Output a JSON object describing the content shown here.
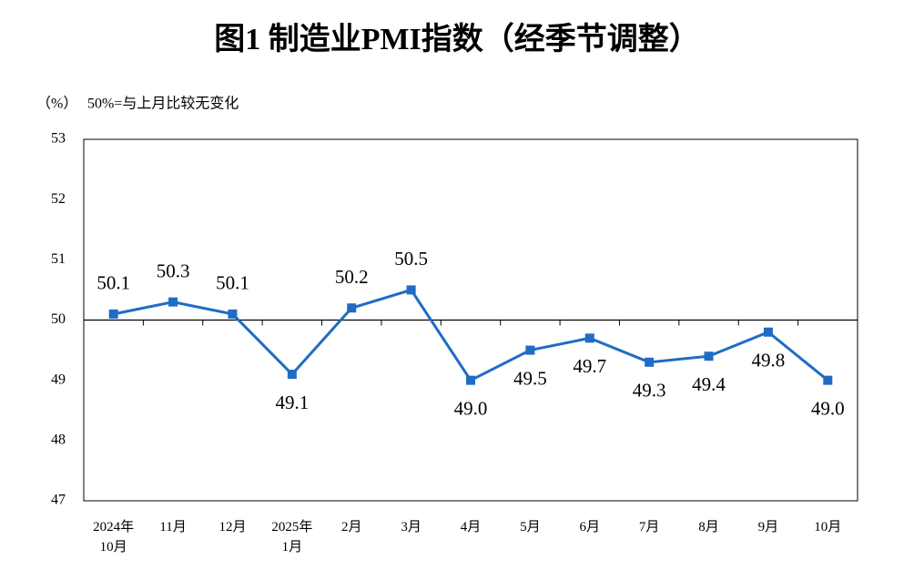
{
  "chart_data": {
    "type": "line",
    "title": "图1  制造业PMI指数（经季节调整）",
    "unit": "（%）",
    "note": "50%=与上月比较无变化",
    "categories": [
      "2024年\n10月",
      "11月",
      "12月",
      "2025年\n1月",
      "2月",
      "3月",
      "4月",
      "5月",
      "6月",
      "7月",
      "8月",
      "9月",
      "10月"
    ],
    "series": [
      {
        "name": "制造业PMI",
        "color": "#1f6cc4",
        "values": [
          50.1,
          50.3,
          50.1,
          49.1,
          50.2,
          50.5,
          49.0,
          49.5,
          49.7,
          49.3,
          49.4,
          49.8,
          49.0
        ],
        "value_labels": [
          "50.1",
          "50.3",
          "50.1",
          "49.1",
          "50.2",
          "50.5",
          "49.0",
          "49.5",
          "49.7",
          "49.3",
          "49.4",
          "49.8",
          "49.0"
        ]
      }
    ],
    "ylim": [
      47,
      53
    ],
    "yticks": [
      47,
      48,
      49,
      50,
      51,
      52,
      53
    ],
    "baseline": 50
  }
}
